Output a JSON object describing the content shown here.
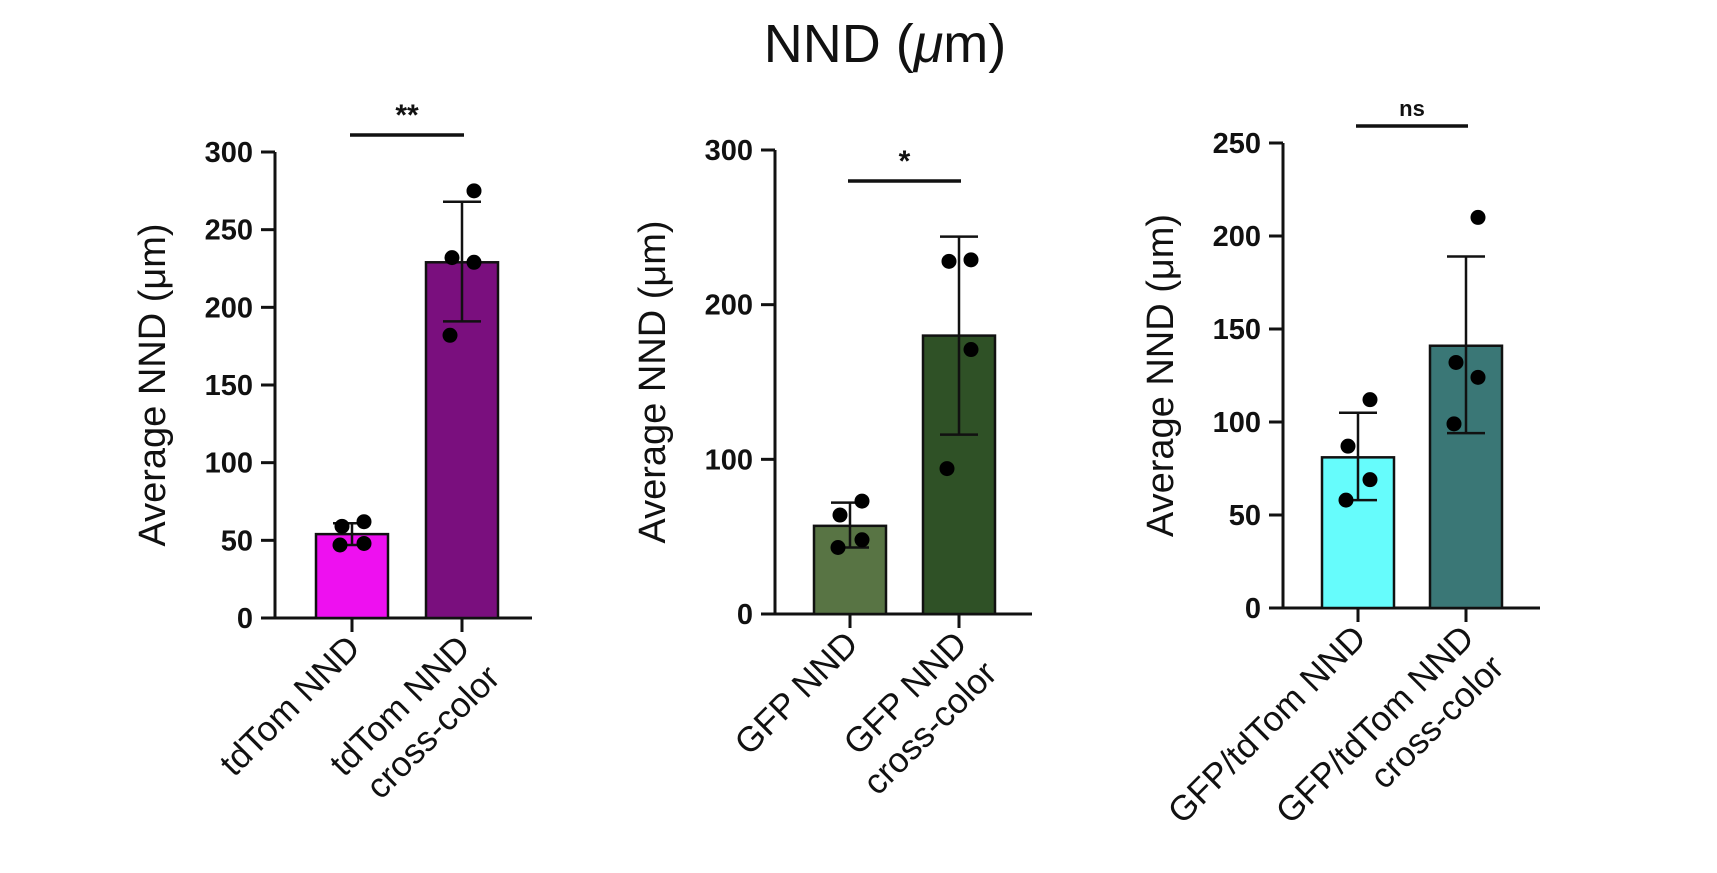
{
  "figure": {
    "title_main": "NND (",
    "title_unit": "μ",
    "title_end": "m)"
  },
  "chart_data": [
    {
      "type": "bar",
      "ylabel": "Average NND (μm)",
      "ylim": [
        0,
        300
      ],
      "yticks": [
        0,
        50,
        100,
        150,
        200,
        250,
        300
      ],
      "categories": [
        [
          "tdTom NND"
        ],
        [
          "tdTom NND",
          "cross-color"
        ]
      ],
      "values": [
        54,
        229
      ],
      "error": [
        [
          47,
          61
        ],
        [
          191,
          268
        ]
      ],
      "points": [
        [
          47,
          48,
          59,
          62
        ],
        [
          182,
          229,
          232,
          275
        ]
      ],
      "colors": [
        "#ee10f0",
        "#7a0f7e"
      ],
      "significance": "**"
    },
    {
      "type": "bar",
      "ylabel": "Average NND (μm)",
      "ylim": [
        0,
        300
      ],
      "yticks": [
        0,
        100,
        200,
        300
      ],
      "categories": [
        [
          "GFP NND"
        ],
        [
          "GFP NND",
          "cross-color"
        ]
      ],
      "values": [
        57,
        180
      ],
      "error": [
        [
          43,
          72
        ],
        [
          116,
          244
        ]
      ],
      "points": [
        [
          43,
          48,
          64,
          73
        ],
        [
          94,
          171,
          228,
          229
        ]
      ],
      "colors": [
        "#587444",
        "#2f5126"
      ],
      "significance": "*"
    },
    {
      "type": "bar",
      "ylabel": "Average NND (μm)",
      "ylim": [
        0,
        250
      ],
      "yticks": [
        0,
        50,
        100,
        150,
        200,
        250
      ],
      "categories": [
        [
          "GFP/tdTom NND"
        ],
        [
          "GFP/tdTom NND",
          "cross-color"
        ]
      ],
      "values": [
        81,
        141
      ],
      "error": [
        [
          58,
          105
        ],
        [
          94,
          189
        ]
      ],
      "points": [
        [
          58,
          69,
          87,
          112
        ],
        [
          99,
          124,
          132,
          210
        ]
      ],
      "colors": [
        "#66fcfc",
        "#3a7776"
      ],
      "significance": "ns"
    }
  ]
}
